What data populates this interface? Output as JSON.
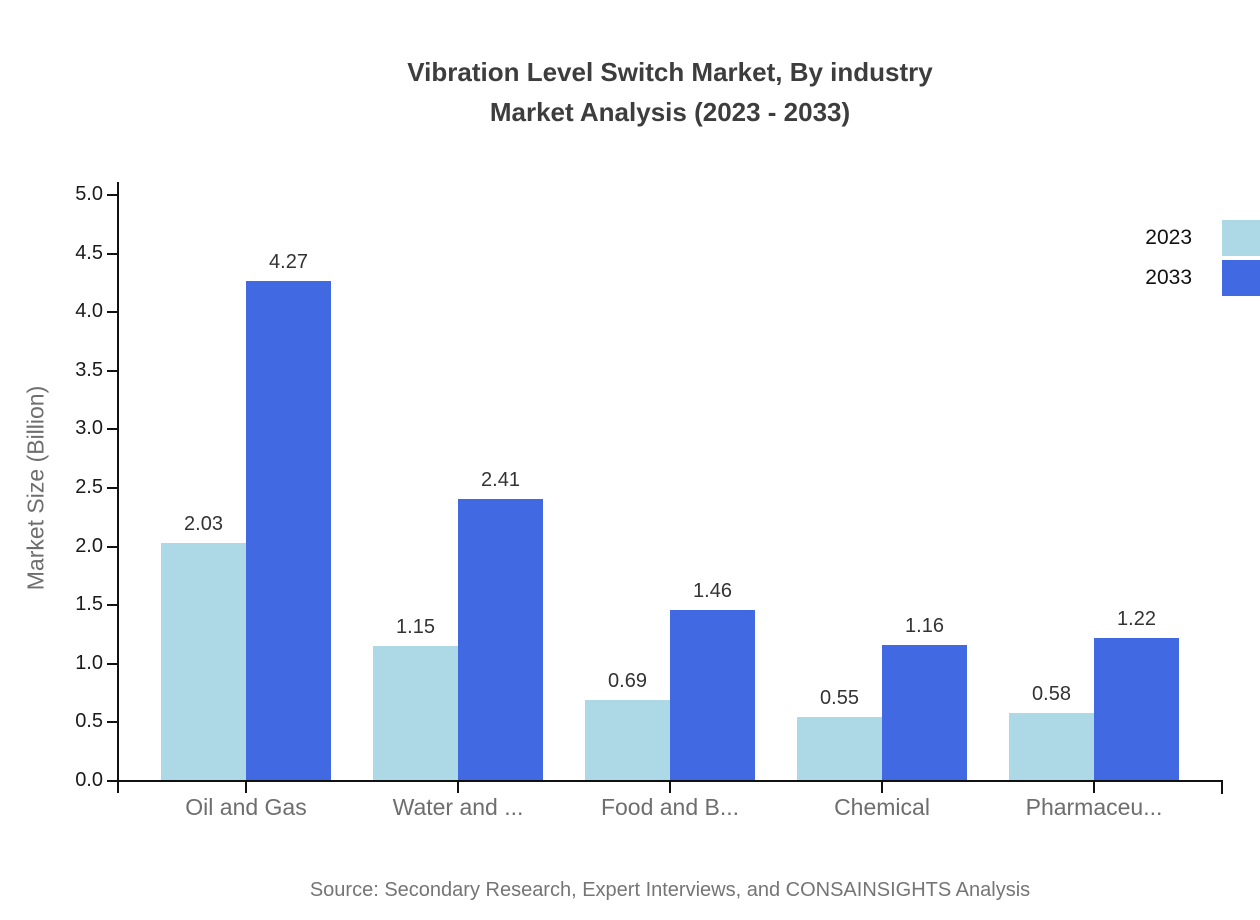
{
  "title": {
    "line1": "Vibration Level Switch Market, By industry",
    "line2": "Market Analysis (2023 - 2033)"
  },
  "chart_data": {
    "type": "bar",
    "categories": [
      "Oil and Gas",
      "Water and ...",
      "Food and B...",
      "Chemical",
      "Pharmaceu..."
    ],
    "series": [
      {
        "name": "2023",
        "color": "#ADD8E6",
        "values": [
          2.03,
          1.15,
          0.69,
          0.55,
          0.58
        ]
      },
      {
        "name": "2033",
        "color": "#4169E1",
        "values": [
          4.27,
          2.41,
          1.46,
          1.16,
          1.22
        ]
      }
    ],
    "xlabel": "",
    "ylabel": "Market Size (Billion)",
    "ylim": [
      0,
      5
    ],
    "ytick_step": 0.5,
    "grid": false,
    "legend_position": "top-right",
    "value_label_format": "2-decimals"
  },
  "source": "Source: Secondary Research, Expert Interviews, and CONSAINSIGHTS Analysis",
  "colors": {
    "series_2023": "#ADD8E6",
    "series_2033": "#4169E1",
    "axis": "#111111",
    "title_text": "#3d3d3d",
    "tick_text": "#1a1a1a",
    "muted_text": "#6e6e6e",
    "value_text": "#333333",
    "source_text": "#757575",
    "background": "#ffffff"
  }
}
